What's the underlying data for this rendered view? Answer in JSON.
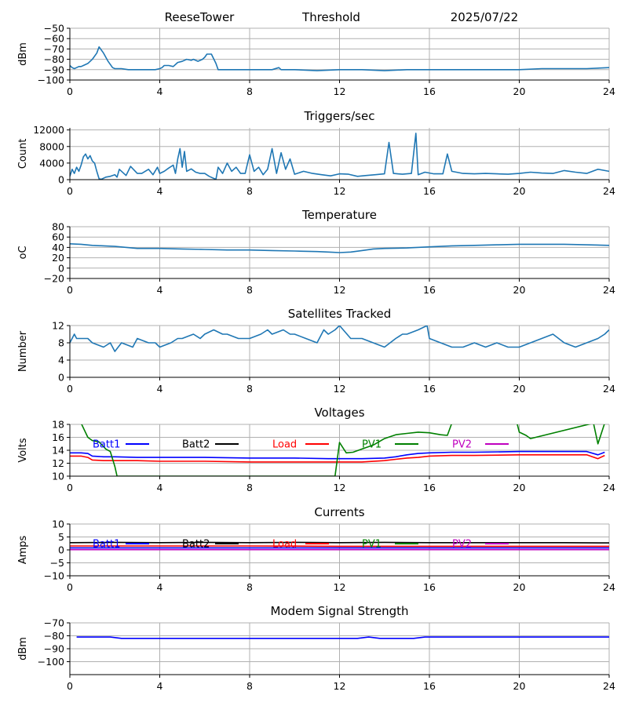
{
  "header": {
    "station": "ReeseTower",
    "mode": "Threshold",
    "date": "2025/07/22"
  },
  "colors": {
    "default_line": "#1f77b4",
    "grid": "#b0b0b0",
    "batt1": "#0000ff",
    "batt2": "#000000",
    "load": "#ff0000",
    "pv1": "#008000",
    "pv2": "#bf00bf"
  },
  "chart_data": [
    {
      "id": "signal",
      "type": "line",
      "title": "",
      "xlabel": "",
      "ylabel": "dBm",
      "xlim": [
        0,
        24
      ],
      "ylim": [
        -100,
        -50
      ],
      "xticks": [
        0,
        4,
        8,
        12,
        16,
        20,
        24
      ],
      "yticks": [
        -100,
        -90,
        -80,
        -70,
        -60,
        -50
      ],
      "grid": true,
      "series": [
        {
          "color": "#1f77b4",
          "x": [
            0,
            0.1,
            0.2,
            0.3,
            0.4,
            0.5,
            0.6,
            0.8,
            1.0,
            1.2,
            1.3,
            1.5,
            1.7,
            1.9,
            2.0,
            2.3,
            2.6,
            3.0,
            3.4,
            3.8,
            4.0,
            4.1,
            4.2,
            4.4,
            4.6,
            4.8,
            5.0,
            5.2,
            5.4,
            5.5,
            5.7,
            5.9,
            6.0,
            6.1,
            6.3,
            6.5,
            6.6,
            7.0,
            8.0,
            9.0,
            9.3,
            9.4,
            10.0,
            11.0,
            12.0,
            13.0,
            14.0,
            15.0,
            16.0,
            17.0,
            18.0,
            19.0,
            20.0,
            21.0,
            22.0,
            23.0,
            24.0
          ],
          "y": [
            -86,
            -88,
            -89,
            -88,
            -87,
            -87,
            -86,
            -84,
            -80,
            -74,
            -68,
            -74,
            -82,
            -88,
            -89,
            -89,
            -90,
            -90,
            -90,
            -90,
            -89,
            -88,
            -86,
            -86,
            -87,
            -83,
            -82,
            -80,
            -81,
            -80,
            -82,
            -80,
            -78,
            -75,
            -75,
            -84,
            -90,
            -90,
            -90,
            -90,
            -88,
            -90,
            -90,
            -91,
            -90,
            -90,
            -91,
            -90,
            -90,
            -90,
            -90,
            -90,
            -90,
            -89,
            -89,
            -89,
            -88
          ]
        }
      ]
    },
    {
      "id": "triggers",
      "type": "line",
      "title": "Triggers/sec",
      "xlabel": "",
      "ylabel": "Count",
      "xlim": [
        0,
        24
      ],
      "ylim": [
        0,
        12500
      ],
      "xticks": [
        0,
        4,
        8,
        12,
        16,
        20,
        24
      ],
      "yticks": [
        0,
        4000,
        8000,
        12000
      ],
      "grid": true,
      "series": [
        {
          "color": "#1f77b4",
          "x": [
            0,
            0.1,
            0.2,
            0.3,
            0.4,
            0.5,
            0.6,
            0.7,
            0.8,
            0.9,
            1.0,
            1.1,
            1.2,
            1.3,
            1.4,
            1.6,
            1.8,
            2.0,
            2.1,
            2.2,
            2.5,
            2.7,
            3.0,
            3.2,
            3.5,
            3.7,
            3.9,
            4.0,
            4.2,
            4.4,
            4.6,
            4.7,
            4.8,
            4.9,
            5.0,
            5.1,
            5.2,
            5.4,
            5.6,
            5.8,
            6.0,
            6.2,
            6.4,
            6.5,
            6.6,
            6.8,
            7.0,
            7.2,
            7.4,
            7.6,
            7.8,
            8.0,
            8.2,
            8.4,
            8.6,
            8.8,
            9.0,
            9.2,
            9.4,
            9.6,
            9.8,
            10.0,
            10.4,
            10.8,
            11.2,
            11.6,
            12.0,
            12.4,
            12.8,
            13.2,
            13.6,
            14.0,
            14.2,
            14.4,
            14.8,
            15.2,
            15.4,
            15.5,
            15.8,
            16.2,
            16.6,
            16.8,
            17.0,
            17.5,
            18.0,
            18.5,
            19.0,
            19.5,
            20.0,
            20.5,
            21.0,
            21.5,
            22.0,
            22.5,
            23.0,
            23.5,
            24.0
          ],
          "y": [
            800,
            2500,
            1500,
            3000,
            2000,
            3500,
            5500,
            6200,
            5000,
            5800,
            4500,
            4000,
            2000,
            200,
            100,
            600,
            800,
            1200,
            600,
            2500,
            1000,
            3200,
            1500,
            1500,
            2500,
            1200,
            3000,
            1500,
            2000,
            2800,
            3500,
            1500,
            5000,
            7500,
            3000,
            6800,
            2000,
            2600,
            1800,
            1500,
            1500,
            800,
            300,
            100,
            3000,
            1500,
            4000,
            2000,
            3000,
            1500,
            1500,
            6000,
            2000,
            3000,
            1200,
            2500,
            7500,
            1500,
            6500,
            2500,
            5000,
            1300,
            2000,
            1500,
            1200,
            900,
            1400,
            1300,
            800,
            1000,
            1200,
            1400,
            9000,
            1500,
            1300,
            1500,
            11200,
            1200,
            1800,
            1400,
            1400,
            6200,
            2000,
            1500,
            1400,
            1500,
            1400,
            1300,
            1500,
            1800,
            1600,
            1500,
            2200,
            1800,
            1500,
            2500,
            2000
          ]
        }
      ]
    },
    {
      "id": "temperature",
      "type": "line",
      "title": "Temperature",
      "xlabel": "",
      "ylabel": "oC",
      "xlim": [
        0,
        24
      ],
      "ylim": [
        -20,
        80
      ],
      "xticks": [
        0,
        4,
        8,
        12,
        16,
        20,
        24
      ],
      "yticks": [
        -20,
        0,
        20,
        40,
        60,
        80
      ],
      "grid": true,
      "series": [
        {
          "color": "#1f77b4",
          "x": [
            0,
            0.5,
            1,
            2,
            3,
            4,
            5,
            6,
            7,
            8,
            9,
            10,
            11,
            11.5,
            12,
            12.5,
            13,
            13.5,
            14,
            15,
            16,
            17,
            18,
            19,
            20,
            21,
            22,
            23,
            24
          ],
          "y": [
            47,
            46,
            44,
            42,
            38,
            38,
            37,
            36,
            35,
            35,
            34,
            33,
            32,
            31,
            30,
            31,
            34,
            37,
            38,
            39,
            41,
            43,
            44,
            45,
            46,
            46,
            46,
            45,
            44
          ]
        }
      ]
    },
    {
      "id": "satellites",
      "type": "line",
      "title": "Satellites Tracked",
      "xlabel": "",
      "ylabel": "Number",
      "xlim": [
        0,
        24
      ],
      "ylim": [
        0,
        12
      ],
      "xticks": [
        0,
        4,
        8,
        12,
        16,
        20,
        24
      ],
      "yticks": [
        0,
        4,
        8,
        12
      ],
      "grid": true,
      "series": [
        {
          "color": "#1f77b4",
          "x": [
            0,
            0.2,
            0.3,
            0.8,
            1.0,
            1.5,
            1.8,
            2.0,
            2.3,
            2.8,
            3.0,
            3.5,
            3.8,
            4.0,
            4.5,
            4.8,
            5.0,
            5.5,
            5.8,
            6.0,
            6.4,
            6.8,
            7.0,
            7.5,
            8.0,
            8.5,
            8.8,
            9.0,
            9.5,
            9.8,
            10.0,
            10.5,
            11.0,
            11.3,
            11.5,
            11.8,
            12.0,
            12.5,
            13.0,
            13.5,
            14.0,
            14.5,
            14.8,
            15.0,
            15.5,
            15.9,
            16.0,
            16.5,
            17.0,
            17.5,
            18.0,
            18.5,
            19.0,
            19.5,
            20.0,
            20.5,
            21.0,
            21.5,
            22.0,
            22.5,
            23.0,
            23.5,
            23.8,
            24.0
          ],
          "y": [
            8,
            10,
            9,
            9,
            8,
            7,
            8,
            6,
            8,
            7,
            9,
            8,
            8,
            7,
            8,
            9,
            9,
            10,
            9,
            10,
            11,
            10,
            10,
            9,
            9,
            10,
            11,
            10,
            11,
            10,
            10,
            9,
            8,
            11,
            10,
            11,
            12,
            9,
            9,
            8,
            7,
            9,
            10,
            10,
            11,
            12,
            9,
            8,
            7,
            7,
            8,
            7,
            8,
            7,
            7,
            8,
            9,
            10,
            8,
            7,
            8,
            9,
            10,
            11
          ]
        }
      ]
    },
    {
      "id": "voltages",
      "type": "line",
      "title": "Voltages",
      "xlabel": "",
      "ylabel": "Volts",
      "xlim": [
        0,
        24
      ],
      "ylim": [
        10,
        18
      ],
      "xticks": [
        0,
        4,
        8,
        12,
        16,
        20,
        24
      ],
      "yticks": [
        10,
        12,
        14,
        16,
        18
      ],
      "grid": true,
      "legend": "top, single row",
      "series": [
        {
          "name": "Batt1",
          "color": "#0000ff",
          "x": [
            0,
            0.5,
            0.8,
            1.0,
            1.5,
            2.0,
            3.0,
            4.0,
            6.0,
            8.0,
            10.0,
            11.5,
            12.0,
            13.0,
            14.0,
            14.5,
            15.0,
            15.5,
            16.0,
            17.0,
            18.0,
            20.0,
            22.0,
            23.0,
            23.5,
            23.8
          ],
          "y": [
            13.6,
            13.6,
            13.5,
            13.1,
            13.0,
            13.0,
            12.9,
            12.9,
            12.9,
            12.8,
            12.8,
            12.7,
            12.7,
            12.7,
            12.8,
            13.0,
            13.3,
            13.5,
            13.6,
            13.7,
            13.7,
            13.8,
            13.8,
            13.8,
            13.3,
            13.7
          ]
        },
        {
          "name": "Load",
          "color": "#ff0000",
          "x": [
            0,
            0.5,
            0.8,
            1.0,
            1.5,
            2.0,
            3.0,
            4.0,
            6.0,
            8.0,
            10.0,
            11.5,
            12.0,
            13.0,
            14.0,
            14.5,
            15.0,
            15.5,
            16.0,
            17.0,
            18.0,
            20.0,
            22.0,
            23.0,
            23.5,
            23.8
          ],
          "y": [
            13.1,
            13.1,
            12.9,
            12.5,
            12.4,
            12.4,
            12.4,
            12.3,
            12.3,
            12.2,
            12.2,
            12.2,
            12.2,
            12.2,
            12.4,
            12.6,
            12.8,
            12.9,
            13.1,
            13.2,
            13.2,
            13.3,
            13.3,
            13.3,
            12.7,
            13.2
          ]
        },
        {
          "name": "PV1",
          "color": "#008000",
          "x": [
            0.5,
            0.8,
            1.0,
            1.3,
            1.6,
            1.8,
            2.0,
            2.1,
            11.8,
            12.0,
            12.3,
            12.6,
            13.0,
            13.5,
            14.0,
            14.5,
            15.0,
            15.5,
            16.0,
            16.5,
            16.8,
            17.0,
            19.9,
            20.0,
            20.3,
            20.5,
            23.3,
            23.5,
            23.8
          ],
          "y": [
            18.2,
            16.0,
            15.5,
            15.3,
            14.2,
            13.8,
            11.5,
            10.0,
            10.0,
            15.2,
            13.6,
            13.7,
            14.2,
            14.8,
            15.8,
            16.4,
            16.6,
            16.8,
            16.7,
            16.4,
            16.3,
            18.2,
            18.2,
            16.8,
            16.3,
            15.8,
            18.2,
            15.0,
            18.2
          ]
        },
        {
          "name": "Batt2",
          "color": "#000000",
          "x": [],
          "y": []
        },
        {
          "name": "PV2",
          "color": "#bf00bf",
          "x": [],
          "y": []
        }
      ]
    },
    {
      "id": "currents",
      "type": "line",
      "title": "Currents",
      "xlabel": "",
      "ylabel": "Amps",
      "xlim": [
        0,
        24
      ],
      "ylim": [
        -10,
        10
      ],
      "xticks": [
        0,
        4,
        8,
        12,
        16,
        20,
        24
      ],
      "yticks": [
        -10,
        -5,
        0,
        5,
        10
      ],
      "grid": true,
      "legend": "top, single row",
      "series": [
        {
          "name": "Batt2",
          "color": "#000000",
          "x": [
            0,
            2,
            4,
            6,
            8,
            10,
            12,
            14,
            16,
            18,
            20,
            22,
            24
          ],
          "y": [
            2.8,
            2.9,
            2.8,
            2.9,
            2.8,
            2.9,
            2.8,
            2.9,
            2.8,
            2.8,
            2.8,
            2.8,
            2.7
          ]
        },
        {
          "name": "Load",
          "color": "#ff0000",
          "x": [
            0,
            4,
            8,
            12,
            16,
            20,
            24
          ],
          "y": [
            1.5,
            1.5,
            1.5,
            1.4,
            1.4,
            1.4,
            1.4
          ]
        },
        {
          "name": "Batt1",
          "color": "#0000ff",
          "x": [
            0,
            4,
            8,
            12,
            16,
            20,
            24
          ],
          "y": [
            0.8,
            0.8,
            0.8,
            0.8,
            0.8,
            0.8,
            0.8
          ]
        },
        {
          "name": "PV2",
          "color": "#bf00bf",
          "x": [
            0,
            4,
            8,
            12,
            16,
            20,
            24
          ],
          "y": [
            0.1,
            0.1,
            0.1,
            0.1,
            0.1,
            0.1,
            0.1
          ]
        },
        {
          "name": "PV1",
          "color": "#008000",
          "x": [],
          "y": []
        }
      ]
    },
    {
      "id": "modem",
      "type": "line",
      "title": "Modem Signal Strength",
      "xlabel": "",
      "ylabel": "dBm",
      "xlim": [
        0,
        24
      ],
      "ylim": [
        -110,
        -70
      ],
      "xticks": [
        0,
        4,
        8,
        12,
        16,
        20,
        24
      ],
      "yticks": [
        -100,
        -90,
        -80,
        -70
      ],
      "grid": true,
      "series": [
        {
          "color": "#0000ff",
          "x": [
            0.3,
            1.0,
            1.8,
            2.3,
            3.0,
            4.0,
            6.0,
            8.0,
            10.0,
            12.0,
            12.8,
            13.3,
            13.8,
            14.5,
            15.3,
            15.8,
            16.5,
            18.0,
            20.0,
            22.0,
            24.0
          ],
          "y": [
            -81,
            -81,
            -81,
            -82,
            -82,
            -82,
            -82,
            -82,
            -82,
            -82,
            -82,
            -81,
            -82,
            -82,
            -82,
            -81,
            -81,
            -81,
            -81,
            -81,
            -81
          ]
        }
      ]
    }
  ],
  "legend_order": [
    "Batt1",
    "Batt2",
    "Load",
    "PV1",
    "PV2"
  ]
}
